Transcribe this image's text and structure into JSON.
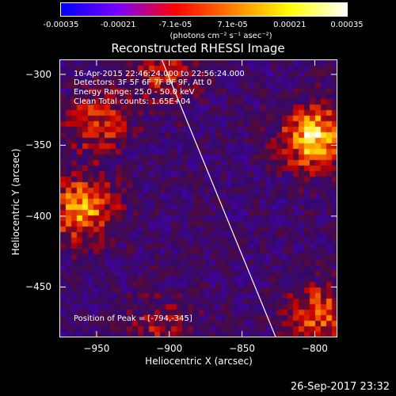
{
  "colorbar": {
    "ticks": [
      "-0.00035",
      "-0.00021",
      "-7.1e-05",
      "7.1e-05",
      "0.00021",
      "0.00035"
    ],
    "unit": "(photons cm⁻² s⁻¹ asec⁻²)",
    "colors": [
      "#0000ff",
      "#7a00ff",
      "#ff0000",
      "#ff8000",
      "#ffff00",
      "#ffffff"
    ]
  },
  "chart_data": {
    "type": "heatmap",
    "title": "Reconstructed RHESSI Image",
    "xlabel": "Heliocentric X (arcsec)",
    "ylabel": "Heliocentric Y (arcsec)",
    "xlim": [
      -975,
      -785
    ],
    "ylim": [
      -485,
      -290
    ],
    "xticks": [
      -950,
      -900,
      -850,
      -800
    ],
    "yticks": [
      -300,
      -350,
      -400,
      -450
    ],
    "x_tick_labels": [
      "−950",
      "−900",
      "−850",
      "−800"
    ],
    "y_tick_labels": [
      "−300",
      "−350",
      "−400",
      "−450"
    ],
    "color_range": [
      -0.00035,
      0.00035
    ],
    "peak": [
      -794,
      -345
    ],
    "hot_spots": [
      {
        "x": -800,
        "y": -345,
        "level": 0.00035
      },
      {
        "x": -960,
        "y": -395,
        "level": 0.00028
      },
      {
        "x": -950,
        "y": -335,
        "level": 0.00018
      },
      {
        "x": -905,
        "y": -300,
        "level": 0.00015
      },
      {
        "x": -798,
        "y": -470,
        "level": 0.00022
      },
      {
        "x": -905,
        "y": -480,
        "level": 0.00012
      }
    ],
    "limb_line": [
      [
        -905,
        -290
      ],
      [
        -827,
        -485
      ]
    ]
  },
  "info": {
    "time": "16-Apr-2015 22:46:24.000 to 22:56:24.000",
    "detectors": "Detectors: 3F 5F 6F 7F 8F 9F, Att 0",
    "energy": "Energy Range: 25.0 - 50.0 keV",
    "clean": "Clean     Total counts: 1.65E+04",
    "peak": "Position of Peak = [-794,-345]"
  },
  "footer": {
    "date": "26-Sep-2017 23:32"
  }
}
